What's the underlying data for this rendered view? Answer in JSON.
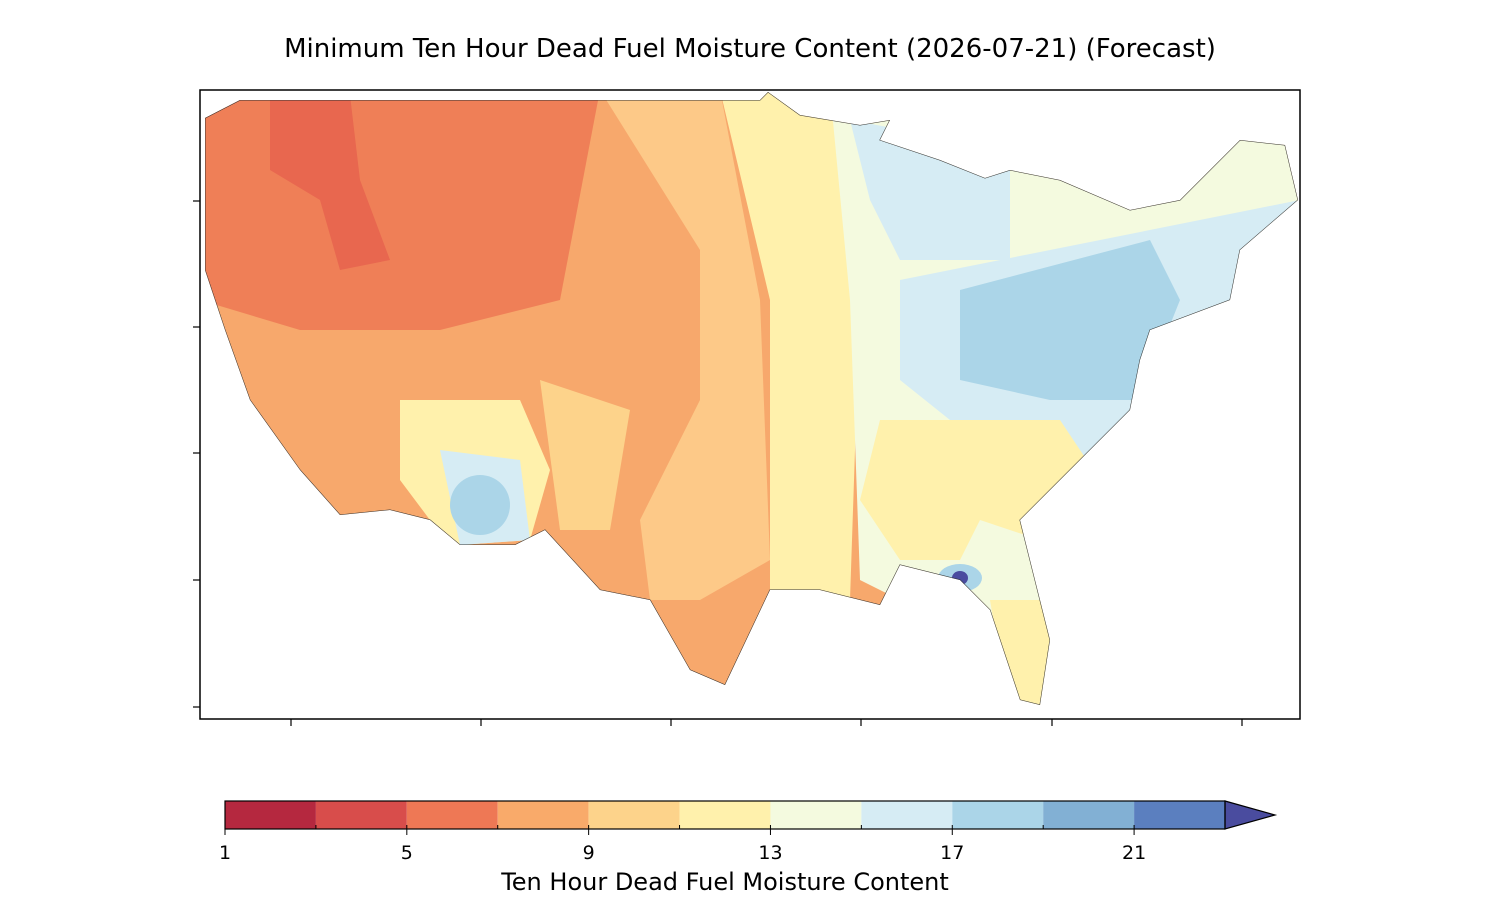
{
  "title": "Minimum Ten Hour Dead Fuel Moisture Content (2026-07-21) (Forecast)",
  "colorbar": {
    "label": "Ten Hour Dead Fuel Moisture Content",
    "levels": [
      1,
      3,
      5,
      7,
      9,
      11,
      13,
      15,
      17,
      19,
      21,
      23
    ],
    "colors": [
      "#b5283f",
      "#d84d4b",
      "#ee7855",
      "#f9aa6a",
      "#fdd38b",
      "#fff1ac",
      "#f4fadf",
      "#d6ecf4",
      "#abd5e8",
      "#82b0d4",
      "#5b7fbf"
    ],
    "extend_color": "#4a4c9f",
    "ticks": [
      1,
      5,
      9,
      13,
      17,
      21
    ]
  }
}
